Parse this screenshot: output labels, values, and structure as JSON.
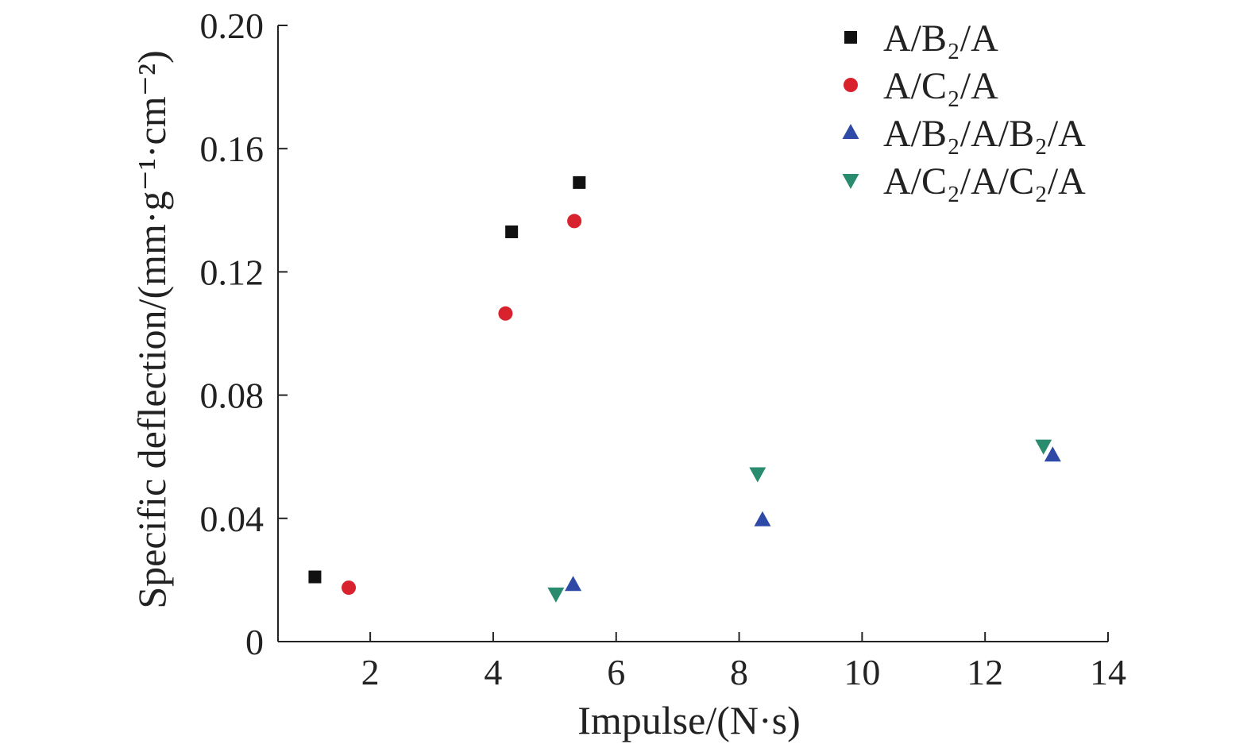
{
  "chart_data": {
    "type": "scatter",
    "title": "",
    "xlabel": "Impulse/(N·s)",
    "ylabel": "Specific deflection/(mm·g⁻¹·cm⁻²)",
    "xlim": [
      0.5,
      14
    ],
    "ylim": [
      0,
      0.2
    ],
    "xticks": [
      2,
      4,
      6,
      8,
      10,
      12,
      14
    ],
    "xtick_labels": [
      "2",
      "4",
      "6",
      "8",
      "10",
      "12",
      "14"
    ],
    "yticks": [
      0,
      0.04,
      0.08,
      0.12,
      0.16,
      0.2
    ],
    "ytick_labels": [
      "0",
      "0.04",
      "0.08",
      "0.12",
      "0.16",
      "0.20"
    ],
    "grid": false,
    "legend_position": "top-right",
    "series": [
      {
        "name": "A/B₂/A",
        "marker": "square",
        "color": "#111111",
        "points": [
          [
            1.1,
            0.021
          ],
          [
            4.3,
            0.133
          ],
          [
            5.4,
            0.149
          ]
        ]
      },
      {
        "name": "A/C₂/A",
        "marker": "circle",
        "color": "#d8232f",
        "points": [
          [
            1.65,
            0.0175
          ],
          [
            4.2,
            0.1065
          ],
          [
            5.32,
            0.1365
          ]
        ]
      },
      {
        "name": "A/B₂/A/B₂/A",
        "marker": "triangle-up",
        "color": "#2e4aa6",
        "points": [
          [
            5.3,
            0.0185
          ],
          [
            8.38,
            0.0395
          ],
          [
            13.1,
            0.0605
          ]
        ]
      },
      {
        "name": "A/C₂/A/C₂/A",
        "marker": "triangle-down",
        "color": "#2a8c6e",
        "points": [
          [
            5.02,
            0.0155
          ],
          [
            8.3,
            0.0545
          ],
          [
            12.95,
            0.0635
          ]
        ]
      }
    ]
  }
}
